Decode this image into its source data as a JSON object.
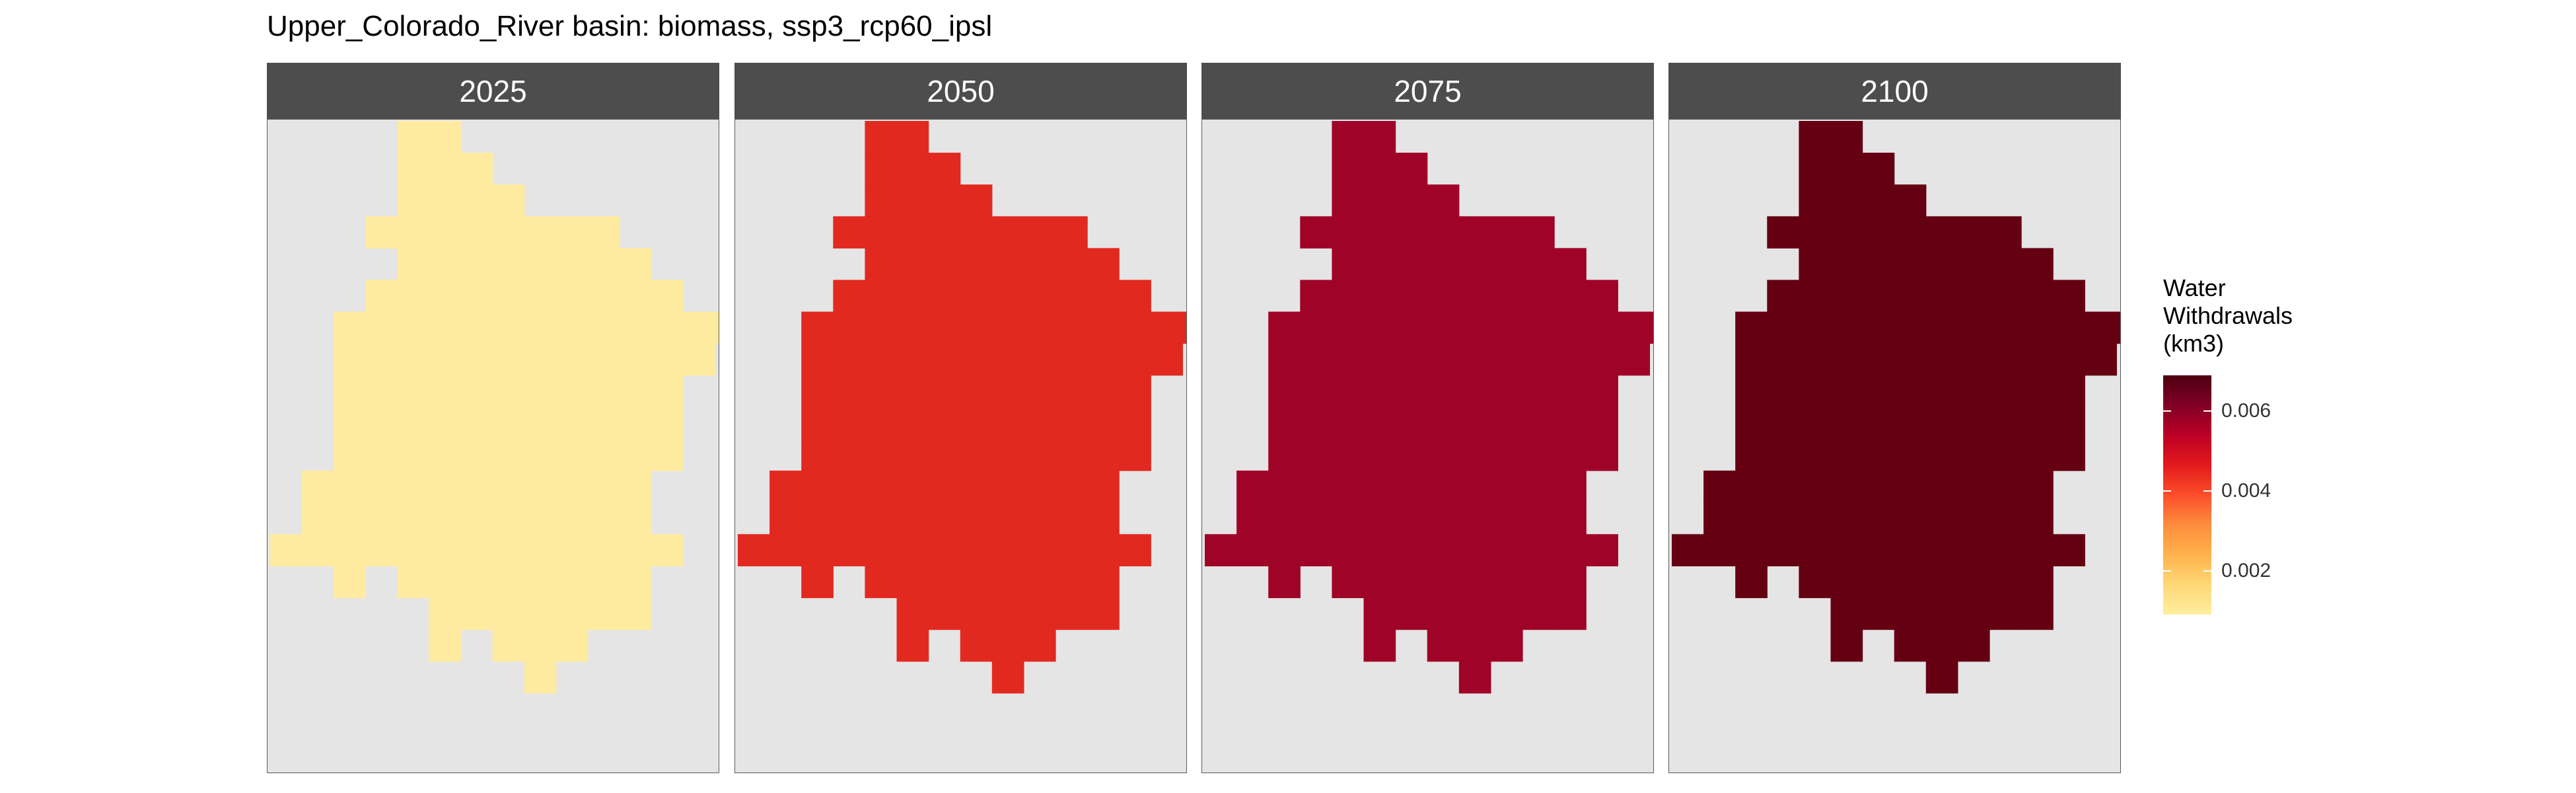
{
  "title": "Upper_Colorado_River basin: biomass, ssp3_rcp60_ipsl",
  "facets": [
    {
      "label": "2025",
      "color": "#ffeba0"
    },
    {
      "label": "2050",
      "color": "#e2291f"
    },
    {
      "label": "2075",
      "color": "#a00328"
    },
    {
      "label": "2100",
      "color": "#650013"
    }
  ],
  "grid": {
    "row_spans": [
      [
        [
          4,
          5
        ]
      ],
      [
        [
          4,
          6
        ]
      ],
      [
        [
          4,
          7
        ]
      ],
      [
        [
          3,
          10
        ]
      ],
      [
        [
          4,
          11
        ]
      ],
      [
        [
          3,
          12
        ]
      ],
      [
        [
          2,
          14
        ]
      ],
      [
        [
          2,
          13
        ]
      ],
      [
        [
          2,
          12
        ]
      ],
      [
        [
          2,
          12
        ]
      ],
      [
        [
          2,
          12
        ]
      ],
      [
        [
          1,
          11
        ]
      ],
      [
        [
          1,
          11
        ]
      ],
      [
        [
          0,
          12
        ]
      ],
      [
        [
          2,
          2
        ],
        [
          4,
          11
        ]
      ],
      [
        [
          5,
          11
        ]
      ],
      [
        [
          5,
          5
        ],
        [
          7,
          9
        ]
      ],
      [
        [
          8,
          8
        ]
      ]
    ]
  },
  "legend": {
    "title": "Water\nWithdrawals\n(km3)",
    "ticks": [
      {
        "label": "0.002",
        "value": 0.002
      },
      {
        "label": "0.004",
        "value": 0.004
      },
      {
        "label": "0.006",
        "value": 0.006
      }
    ],
    "range": [
      0.0009,
      0.0069
    ],
    "gradient": [
      "#ffeda0",
      "#fed976",
      "#feb24c",
      "#fd8d3c",
      "#fc4e2a",
      "#e31a1c",
      "#bd0026",
      "#800026",
      "#4d0010"
    ]
  },
  "chart_data": {
    "type": "heatmap",
    "title": "Upper_Colorado_River basin: biomass, ssp3_rcp60_ipsl",
    "facets": [
      "2025",
      "2050",
      "2075",
      "2100"
    ],
    "legend_title": "Water Withdrawals (km3)",
    "approx_values": [
      0.0011,
      0.0043,
      0.0062,
      0.0068
    ],
    "colorbar_range": [
      0.0009,
      0.0069
    ],
    "colorbar_ticks": [
      0.002,
      0.004,
      0.006
    ],
    "grid": false,
    "legend_placement": "right"
  }
}
